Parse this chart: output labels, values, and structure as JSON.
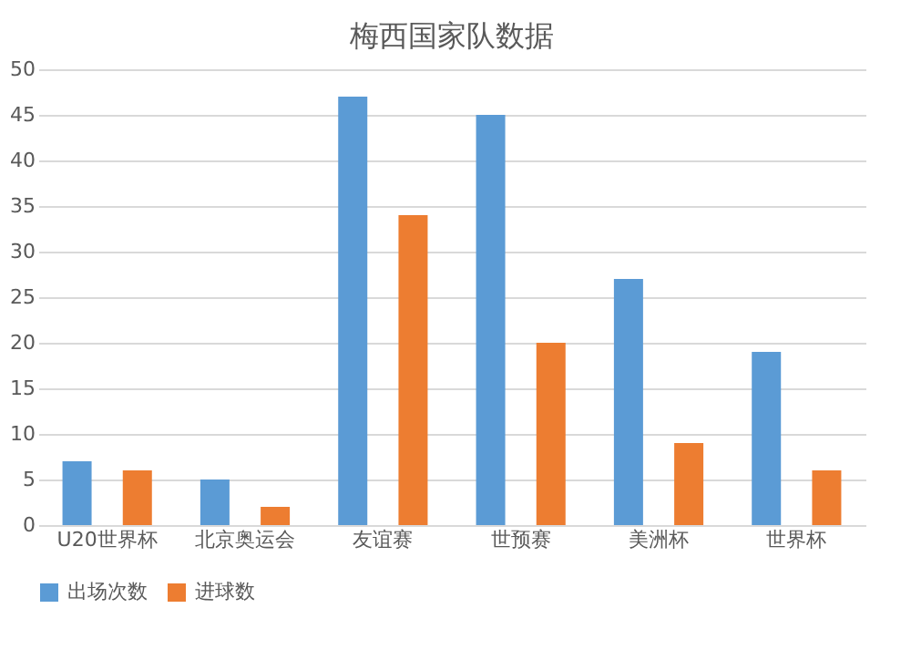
{
  "chart_data": {
    "type": "bar",
    "title": "梅西国家队数据",
    "categories": [
      "U20世界杯",
      "北京奥运会",
      "友谊赛",
      "世预赛",
      "美洲杯",
      "世界杯"
    ],
    "series": [
      {
        "name": "出场次数",
        "color": "#5b9bd5",
        "values": [
          7,
          5,
          47,
          45,
          27,
          19
        ]
      },
      {
        "name": "进球数",
        "color": "#ed7d31",
        "values": [
          6,
          2,
          34,
          20,
          9,
          6
        ]
      }
    ],
    "ylim": [
      0,
      50
    ],
    "yticks": [
      0,
      5,
      10,
      15,
      20,
      25,
      30,
      35,
      40,
      45,
      50
    ],
    "grid": "y",
    "legend": "bottom"
  }
}
